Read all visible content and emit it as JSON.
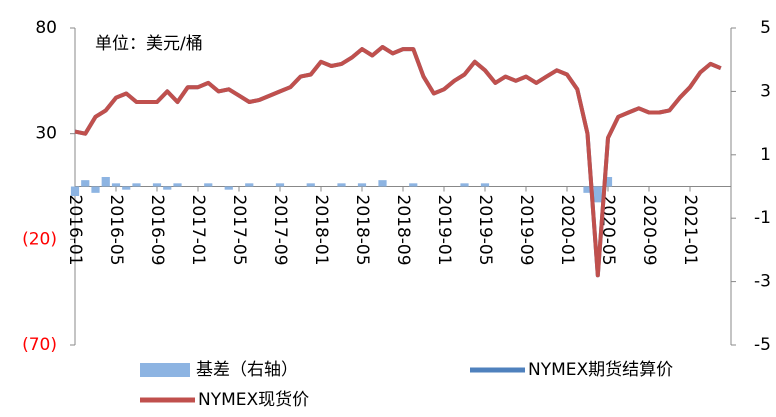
{
  "chart_data": {
    "type": "line",
    "annotation": "单位：美元/桶",
    "categories": [
      "2016-01",
      null,
      null,
      null,
      "2016-05",
      null,
      null,
      null,
      "2016-09",
      null,
      null,
      null,
      "2017-01",
      null,
      null,
      null,
      "2017-05",
      null,
      null,
      null,
      "2017-09",
      null,
      null,
      null,
      "2018-01",
      null,
      null,
      null,
      "2018-05",
      null,
      null,
      null,
      "2018-09",
      null,
      null,
      null,
      "2019-01",
      null,
      null,
      null,
      "2019-05",
      null,
      null,
      null,
      "2019-09",
      null,
      null,
      null,
      "2020-01",
      null,
      null,
      null,
      "2020-05",
      null,
      null,
      null,
      "2020-09",
      null,
      null,
      null,
      "2021-01",
      null,
      null,
      null
    ],
    "series": [
      {
        "name": "基差（右轴）",
        "color": "#8db4e2",
        "axis": "y2",
        "bar": true,
        "values": [
          -0.3,
          0.2,
          -0.2,
          0.3,
          0.1,
          -0.1,
          0.1,
          0,
          0.1,
          -0.1,
          0.1,
          0,
          0,
          0.1,
          0,
          -0.1,
          0,
          0.1,
          0,
          0,
          0.1,
          0,
          0,
          0.1,
          0,
          0,
          0.1,
          0,
          0.1,
          0,
          0.2,
          0,
          0,
          0.1,
          0,
          0,
          0,
          0,
          0.1,
          0,
          0.1,
          0,
          0,
          0,
          0,
          0,
          0,
          0,
          0,
          0,
          -0.2,
          -0.5,
          0.3,
          0,
          0,
          0,
          0,
          0,
          0,
          0,
          0,
          0,
          0,
          0
        ]
      },
      {
        "name": "NYMEX期货结算价",
        "color": "#4f81bd",
        "values": [
          31,
          30,
          38,
          41,
          47,
          49,
          45,
          45,
          45,
          50,
          45,
          52,
          52,
          54,
          50,
          51,
          48,
          45,
          46,
          48,
          50,
          52,
          57,
          58,
          64,
          62,
          63,
          66,
          70,
          67,
          71,
          68,
          70,
          70,
          57,
          49,
          51,
          55,
          58,
          64,
          60,
          54,
          57,
          55,
          57,
          54,
          57,
          60,
          58,
          51,
          30,
          -37,
          28,
          38,
          40,
          42,
          40,
          40,
          41,
          47,
          52,
          59,
          63,
          61
        ]
      },
      {
        "name": "NYMEX现货价",
        "color": "#c0504d",
        "values": [
          31,
          30,
          38,
          41,
          47,
          49,
          45,
          45,
          45,
          50,
          45,
          52,
          52,
          54,
          50,
          51,
          48,
          45,
          46,
          48,
          50,
          52,
          57,
          58,
          64,
          62,
          63,
          66,
          70,
          67,
          71,
          68,
          70,
          70,
          57,
          49,
          51,
          55,
          58,
          64,
          60,
          54,
          57,
          55,
          57,
          54,
          57,
          60,
          58,
          51,
          30,
          -37,
          28,
          38,
          40,
          42,
          40,
          40,
          41,
          47,
          52,
          59,
          63,
          61
        ]
      }
    ],
    "ylim": [
      -70,
      80
    ],
    "yticks": [
      {
        "value": -70,
        "label": "(70)"
      },
      {
        "value": -20,
        "label": "(20)"
      },
      30,
      80
    ],
    "y2lim": [
      -5,
      5
    ],
    "y2ticks": [
      -5,
      -3,
      -1,
      1,
      3,
      5
    ]
  }
}
